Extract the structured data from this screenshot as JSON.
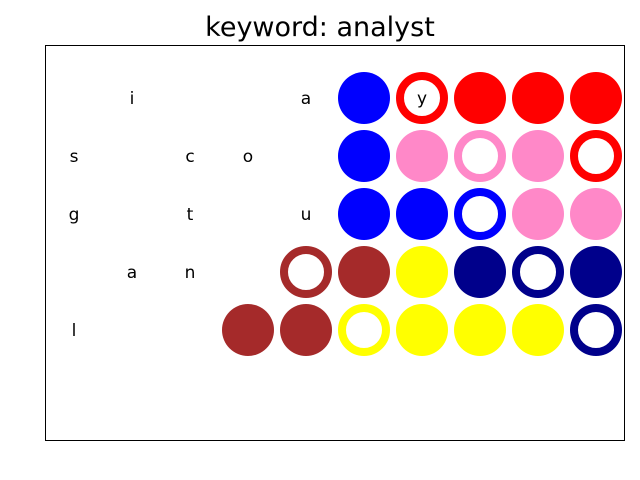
{
  "title": "keyword: analyst",
  "colors": {
    "blue": "#0000ff",
    "red": "#ff0000",
    "pink": "#ff88c8",
    "brown": "#a52a2a",
    "yellow": "#ffff00",
    "navy": "#00008b"
  },
  "grid": {
    "rows": [
      [
        {
          "letter": ""
        },
        {
          "letter": "i"
        },
        {
          "letter": ""
        },
        {
          "letter": ""
        },
        {
          "letter": "a"
        },
        {
          "color": "blue",
          "style": "filled"
        },
        {
          "color": "red",
          "style": "ring",
          "letter": "y"
        },
        {
          "color": "red",
          "style": "filled"
        },
        {
          "color": "red",
          "style": "filled"
        },
        {
          "color": "red",
          "style": "filled"
        }
      ],
      [
        {
          "letter": "s"
        },
        {
          "letter": ""
        },
        {
          "letter": "c"
        },
        {
          "letter": "o"
        },
        {
          "letter": ""
        },
        {
          "color": "blue",
          "style": "filled"
        },
        {
          "color": "pink",
          "style": "filled"
        },
        {
          "color": "pink",
          "style": "ring"
        },
        {
          "color": "pink",
          "style": "filled"
        },
        {
          "color": "red",
          "style": "ring"
        }
      ],
      [
        {
          "letter": "g"
        },
        {
          "letter": ""
        },
        {
          "letter": "t"
        },
        {
          "letter": ""
        },
        {
          "letter": "u"
        },
        {
          "color": "blue",
          "style": "filled"
        },
        {
          "color": "blue",
          "style": "filled"
        },
        {
          "color": "blue",
          "style": "ring"
        },
        {
          "color": "pink",
          "style": "filled"
        },
        {
          "color": "pink",
          "style": "filled"
        }
      ],
      [
        {
          "letter": ""
        },
        {
          "letter": "a"
        },
        {
          "letter": "n"
        },
        {
          "letter": ""
        },
        {
          "color": "brown",
          "style": "ring"
        },
        {
          "color": "brown",
          "style": "filled"
        },
        {
          "color": "yellow",
          "style": "filled"
        },
        {
          "color": "navy",
          "style": "filled"
        },
        {
          "color": "navy",
          "style": "ring"
        },
        {
          "color": "navy",
          "style": "filled"
        }
      ],
      [
        {
          "letter": "l"
        },
        {
          "letter": ""
        },
        {
          "letter": ""
        },
        {
          "color": "brown",
          "style": "filled"
        },
        {
          "color": "brown",
          "style": "filled"
        },
        {
          "color": "yellow",
          "style": "ring"
        },
        {
          "color": "yellow",
          "style": "filled"
        },
        {
          "color": "yellow",
          "style": "filled"
        },
        {
          "color": "yellow",
          "style": "filled"
        },
        {
          "color": "navy",
          "style": "ring"
        }
      ]
    ]
  }
}
